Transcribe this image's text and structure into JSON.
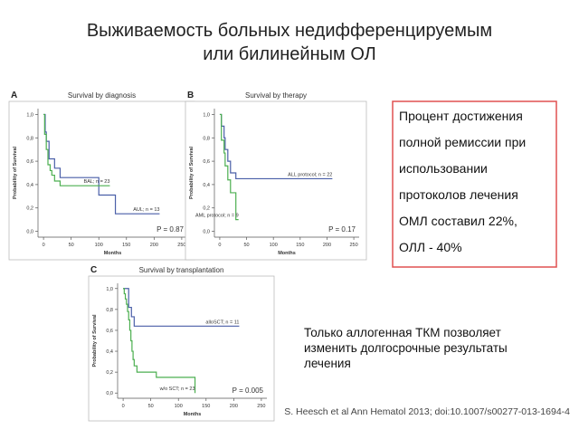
{
  "slide": {
    "title": [
      "Выживаемость больных недифференцируемым",
      "или билинейным ОЛ"
    ],
    "box": [
      "Процент достижения",
      "полной ремиссии при",
      "использовании",
      "протоколов лечения",
      "ОМЛ составил 22%,",
      "ОЛЛ - 40%"
    ],
    "note": [
      "Только аллогенная ТКМ позволяет",
      "изменить долгосрочные результаты",
      "лечения"
    ],
    "citation": "S. Heesch et al Ann Hematol 2013; doi:10.1007/s00277-013-1694-4"
  },
  "chart_data": [
    {
      "type": "step",
      "panel": "A",
      "title": "Survival by diagnosis",
      "x_label": "Months",
      "y_label": "Probability of Survival",
      "annotation": "P = 0.87",
      "xlim": [
        -10,
        260
      ],
      "ylim": [
        -0.05,
        1.05
      ],
      "xticks": [
        0,
        50,
        100,
        150,
        200,
        250
      ],
      "yticks": [
        {
          "value": 0,
          "label": "0,0"
        },
        {
          "value": 0.2,
          "label": "0,2"
        },
        {
          "value": 0.4,
          "label": "0,4"
        },
        {
          "value": 0.6,
          "label": "0,6"
        },
        {
          "value": 0.8,
          "label": "0,8"
        },
        {
          "value": 1,
          "label": "1,0"
        }
      ],
      "series": [
        {
          "name": "AUL; n = 13",
          "color": "#4a5fa8",
          "x": [
            0,
            3,
            5,
            10,
            20,
            30,
            100,
            130,
            210
          ],
          "values": [
            1,
            0.85,
            0.77,
            0.62,
            0.54,
            0.46,
            0.31,
            0.15,
            0.15
          ]
        },
        {
          "name": "BAL; n = 23",
          "color": "#4caf50",
          "x": [
            0,
            2,
            5,
            8,
            12,
            15,
            20,
            30,
            120
          ],
          "values": [
            1,
            0.83,
            0.7,
            0.57,
            0.52,
            0.48,
            0.43,
            0.39,
            0.39
          ]
        }
      ]
    },
    {
      "type": "step",
      "panel": "B",
      "title": "Survival by therapy",
      "x_label": "Months",
      "y_label": "Probability of Survival",
      "annotation": "P = 0.17",
      "xlim": [
        -10,
        260
      ],
      "ylim": [
        -0.05,
        1.05
      ],
      "xticks": [
        0,
        50,
        100,
        150,
        200,
        250
      ],
      "yticks": [
        {
          "value": 0,
          "label": "0,0"
        },
        {
          "value": 0.2,
          "label": "0,2"
        },
        {
          "value": 0.4,
          "label": "0,4"
        },
        {
          "value": 0.6,
          "label": "0,6"
        },
        {
          "value": 0.8,
          "label": "0,8"
        },
        {
          "value": 1,
          "label": "1,0"
        }
      ],
      "series": [
        {
          "name": "ALL protocol; n = 22",
          "color": "#4a5fa8",
          "x": [
            0,
            3,
            8,
            10,
            15,
            20,
            30,
            210
          ],
          "values": [
            1,
            0.9,
            0.8,
            0.7,
            0.6,
            0.5,
            0.45,
            0.45
          ]
        },
        {
          "name": "AML protocol; n = 9",
          "color": "#4caf50",
          "x": [
            0,
            3,
            8,
            10,
            15,
            20,
            30,
            35
          ],
          "values": [
            1,
            0.78,
            0.67,
            0.56,
            0.44,
            0.33,
            0.1,
            0.1
          ]
        }
      ]
    },
    {
      "type": "step",
      "panel": "C",
      "title": "Survival by transplantation",
      "x_label": "Months",
      "y_label": "Probability of Survival",
      "annotation": "P = 0.005",
      "xlim": [
        -10,
        260
      ],
      "ylim": [
        -0.05,
        1.05
      ],
      "xticks": [
        0,
        50,
        100,
        150,
        200,
        250
      ],
      "yticks": [
        {
          "value": 0,
          "label": "0,0"
        },
        {
          "value": 0.2,
          "label": "0,2"
        },
        {
          "value": 0.4,
          "label": "0,4"
        },
        {
          "value": 0.6,
          "label": "0,6"
        },
        {
          "value": 0.8,
          "label": "0,8"
        },
        {
          "value": 1,
          "label": "1,0"
        }
      ],
      "series": [
        {
          "name": "alloSCT; n = 11",
          "color": "#4a5fa8",
          "x": [
            0,
            10,
            15,
            20,
            210
          ],
          "values": [
            1,
            0.82,
            0.73,
            0.64,
            0.64
          ]
        },
        {
          "name": "w/o SCT; n = 23",
          "color": "#4caf50",
          "x": [
            0,
            2,
            4,
            6,
            8,
            10,
            12,
            14,
            16,
            18,
            20,
            25,
            60,
            130
          ],
          "values": [
            1,
            0.95,
            0.9,
            0.85,
            0.78,
            0.7,
            0.6,
            0.5,
            0.4,
            0.32,
            0.26,
            0.2,
            0.15,
            0
          ]
        }
      ]
    }
  ]
}
